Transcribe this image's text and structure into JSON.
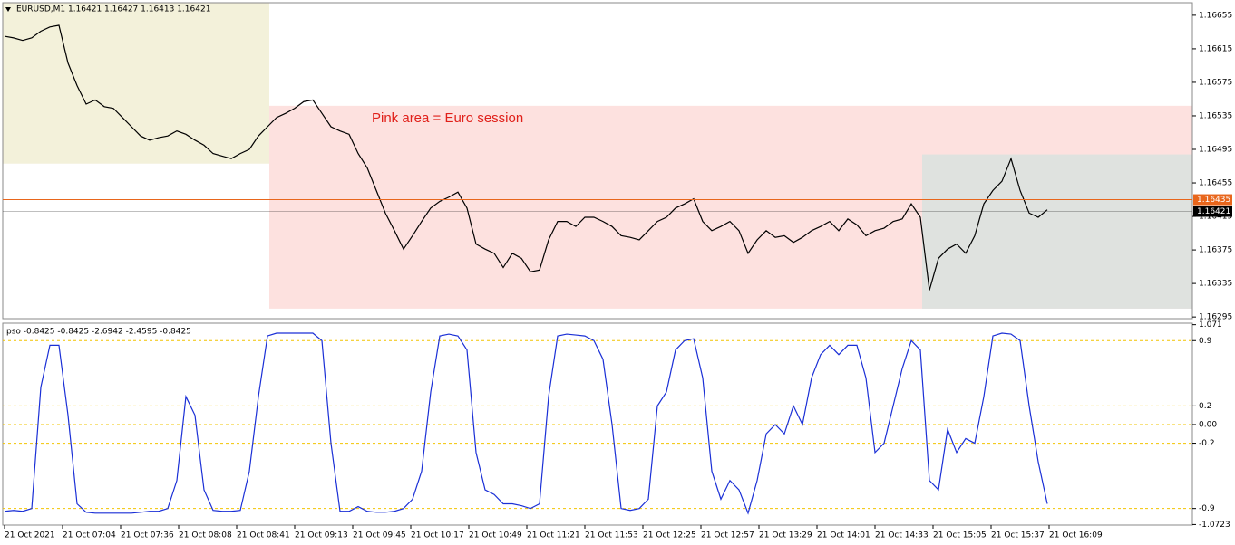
{
  "chart_data": [
    {
      "type": "line",
      "title": "EURUSD,M1  1.16421 1.16427 1.16413 1.16421",
      "annotation": "Pink area = Euro session",
      "ylim": [
        1.16293,
        1.1667
      ],
      "yticks": [
        1.16655,
        1.16615,
        1.16575,
        1.16535,
        1.16495,
        1.16455,
        1.16415,
        1.16375,
        1.16335,
        1.16295
      ],
      "zones": [
        {
          "ylim": [
            1.16478,
            1.1667
          ],
          "color": "#f3f1da"
        },
        {
          "ylim": [
            1.16305,
            1.16547
          ],
          "color": "#fde1df"
        },
        {
          "ylim": [
            1.16305,
            1.16489
          ],
          "color": "#dfe2df"
        }
      ],
      "hlines": [
        {
          "value": 1.16435,
          "color": "#e8661c"
        },
        {
          "value": 1.16421,
          "color": "#000000"
        }
      ],
      "series": [
        {
          "color": "#000000",
          "values": [
            1.1663,
            1.16628,
            1.16625,
            1.16628,
            1.16636,
            1.16641,
            1.16643,
            1.16598,
            1.16571,
            1.16549,
            1.16554,
            1.16546,
            1.16544,
            1.16533,
            1.16522,
            1.16511,
            1.16506,
            1.16509,
            1.16511,
            1.16517,
            1.16513,
            1.16506,
            1.165,
            1.1649,
            1.16487,
            1.16484,
            1.1649,
            1.16495,
            1.16511,
            1.16522,
            1.16533,
            1.16538,
            1.16544,
            1.16552,
            1.16554,
            1.16538,
            1.16522,
            1.16517,
            1.16513,
            1.1649,
            1.16473,
            1.16446,
            1.16419,
            1.16398,
            1.16376,
            1.16392,
            1.16409,
            1.16425,
            1.16433,
            1.16438,
            1.16444,
            1.16425,
            1.16382,
            1.16376,
            1.16371,
            1.16354,
            1.16371,
            1.16365,
            1.16349,
            1.16351,
            1.16387,
            1.16409,
            1.16409,
            1.16403,
            1.16414,
            1.16414,
            1.16409,
            1.16403,
            1.16392,
            1.1639,
            1.16387,
            1.16398,
            1.16409,
            1.16414,
            1.16425,
            1.1643,
            1.16436,
            1.16409,
            1.16398,
            1.16403,
            1.16409,
            1.16398,
            1.16371,
            1.16387,
            1.16398,
            1.1639,
            1.16392,
            1.16384,
            1.1639,
            1.16398,
            1.16403,
            1.16409,
            1.16398,
            1.16412,
            1.16405,
            1.16392,
            1.16398,
            1.16401,
            1.16409,
            1.16412,
            1.1643,
            1.16414,
            1.16327,
            1.16365,
            1.16376,
            1.16382,
            1.16371,
            1.16392,
            1.1643,
            1.16446,
            1.16457,
            1.16484,
            1.16446,
            1.16419,
            1.16414,
            1.16423
          ]
        }
      ]
    },
    {
      "type": "line",
      "title": "pso -0.8425 -0.8425 -2.6942 -2.4595 -0.8425",
      "ylim": [
        -1.078,
        1.087
      ],
      "yticks": [
        1.071,
        0.9,
        0.2,
        {
          "value": 0,
          "label": "0.00"
        },
        -0.2,
        -0.9,
        -1.0723
      ],
      "levels": [
        0.9,
        0.2,
        0,
        -0.2,
        -0.9
      ],
      "xtick_labels": [
        "21 Oct 2021",
        "21 Oct 07:04",
        "21 Oct 07:36",
        "21 Oct 08:08",
        "21 Oct 08:41",
        "21 Oct 09:13",
        "21 Oct 09:45",
        "21 Oct 10:17",
        "21 Oct 10:49",
        "21 Oct 11:21",
        "21 Oct 11:53",
        "21 Oct 12:25",
        "21 Oct 12:57",
        "21 Oct 13:29",
        "21 Oct 14:01",
        "21 Oct 14:33",
        "21 Oct 15:05",
        "21 Oct 15:37",
        "21 Oct 16:09"
      ],
      "series": [
        {
          "color": "#1a2fd6",
          "values": [
            -0.93,
            -0.92,
            -0.93,
            -0.9,
            0.4,
            0.85,
            0.85,
            0.1,
            -0.85,
            -0.94,
            -0.95,
            -0.95,
            -0.95,
            -0.95,
            -0.95,
            -0.94,
            -0.93,
            -0.93,
            -0.9,
            -0.6,
            0.3,
            0.1,
            -0.7,
            -0.92,
            -0.93,
            -0.93,
            -0.92,
            -0.5,
            0.3,
            0.95,
            0.98,
            0.98,
            0.98,
            0.98,
            0.98,
            0.9,
            -0.2,
            -0.93,
            -0.93,
            -0.88,
            -0.93,
            -0.94,
            -0.94,
            -0.93,
            -0.9,
            -0.8,
            -0.5,
            0.35,
            0.95,
            0.97,
            0.95,
            0.8,
            -0.3,
            -0.7,
            -0.75,
            -0.85,
            -0.85,
            -0.87,
            -0.9,
            -0.85,
            0.3,
            0.95,
            0.97,
            0.96,
            0.95,
            0.9,
            0.7,
            0.0,
            -0.9,
            -0.92,
            -0.9,
            -0.8,
            0.2,
            0.35,
            0.8,
            0.9,
            0.92,
            0.5,
            -0.5,
            -0.8,
            -0.6,
            -0.7,
            -0.95,
            -0.6,
            -0.1,
            0.0,
            -0.1,
            0.2,
            0.0,
            0.5,
            0.75,
            0.85,
            0.75,
            0.85,
            0.85,
            0.5,
            -0.3,
            -0.2,
            0.2,
            0.6,
            0.9,
            0.8,
            -0.6,
            -0.7,
            -0.05,
            -0.3,
            -0.15,
            -0.2,
            0.3,
            0.95,
            0.98,
            0.97,
            0.9,
            0.2,
            -0.4,
            -0.85
          ]
        }
      ]
    }
  ]
}
